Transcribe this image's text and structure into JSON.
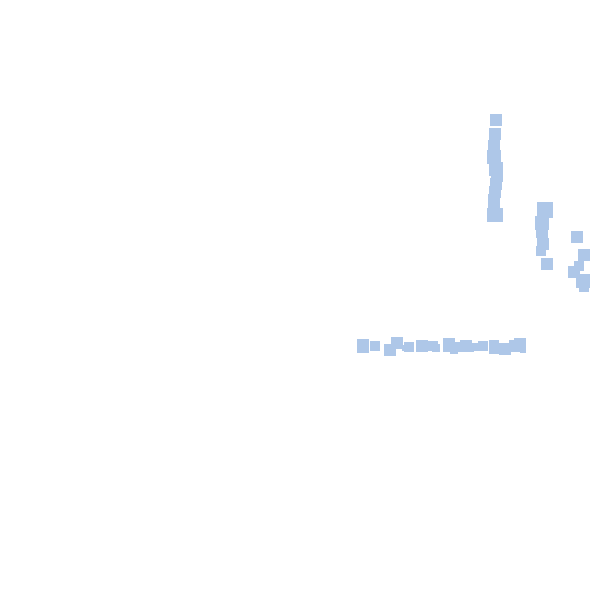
{
  "canvas": {
    "background": "#ffffff"
  },
  "palette": {
    "mark_fill": "#aec7e8"
  },
  "groups": [
    {
      "name": "vertical-stroke",
      "count": 14
    },
    {
      "name": "right-cluster",
      "count": 13
    },
    {
      "name": "horizontal-stroke",
      "count": 22
    }
  ]
}
